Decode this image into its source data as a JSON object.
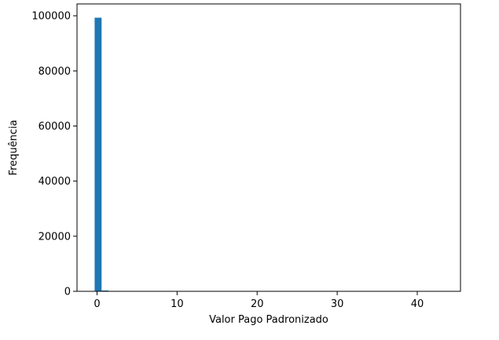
{
  "chart_data": {
    "type": "bar",
    "subtype": "histogram",
    "title": "",
    "xlabel": "Valor Pago Padronizado",
    "ylabel": "Frequência",
    "bin_width": 0.87,
    "bins": [
      {
        "x0": -0.3,
        "value": 99300
      },
      {
        "x0": 0.57,
        "value": 300
      },
      {
        "x0": 1.44,
        "value": 150
      },
      {
        "x0": 2.31,
        "value": 100
      },
      {
        "x0": 3.18,
        "value": 80
      },
      {
        "x0": 4.05,
        "value": 60
      },
      {
        "x0": 4.92,
        "value": 40
      }
    ],
    "xlim": [
      -2.5,
      45.4
    ],
    "ylim": [
      0,
      104300
    ],
    "xticks": [
      0,
      10,
      20,
      30,
      40
    ],
    "xtick_labels": [
      "0",
      "10",
      "20",
      "30",
      "40"
    ],
    "yticks": [
      0,
      20000,
      40000,
      60000,
      80000,
      100000
    ],
    "ytick_labels": [
      "0",
      "20000",
      "40000",
      "60000",
      "80000",
      "100000"
    ],
    "grid": false,
    "bar_color": "#1f77b4"
  }
}
